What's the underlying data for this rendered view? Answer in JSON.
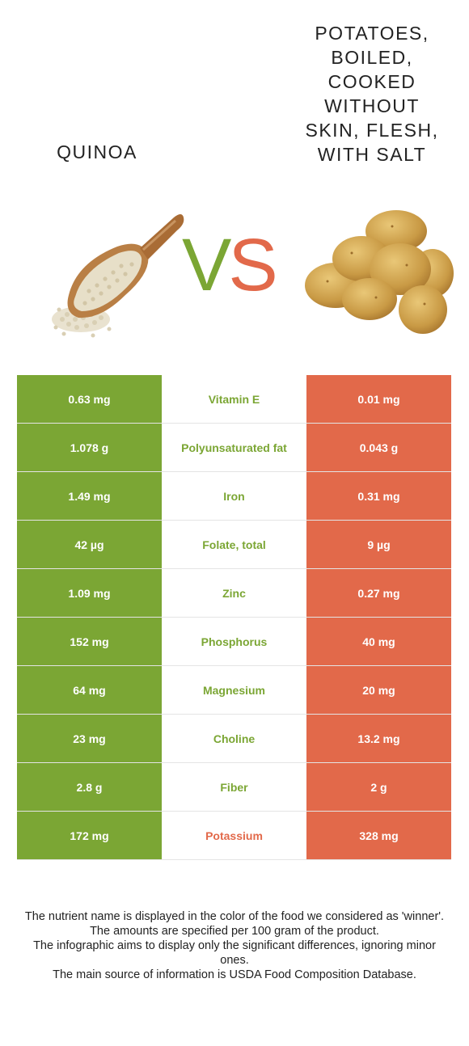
{
  "foods": {
    "left": {
      "name": "Quinoa",
      "color": "#7ba634"
    },
    "right": {
      "name": "Potatoes, boiled, cooked without skin, flesh, with salt",
      "color": "#e2694a"
    }
  },
  "vs": {
    "v": "V",
    "s": "S"
  },
  "rows": [
    {
      "left": "0.63 mg",
      "nutrient": "Vitamin E",
      "right": "0.01 mg",
      "winner": "left"
    },
    {
      "left": "1.078 g",
      "nutrient": "Polyunsaturated fat",
      "right": "0.043 g",
      "winner": "left"
    },
    {
      "left": "1.49 mg",
      "nutrient": "Iron",
      "right": "0.31 mg",
      "winner": "left"
    },
    {
      "left": "42 µg",
      "nutrient": "Folate, total",
      "right": "9 µg",
      "winner": "left"
    },
    {
      "left": "1.09 mg",
      "nutrient": "Zinc",
      "right": "0.27 mg",
      "winner": "left"
    },
    {
      "left": "152 mg",
      "nutrient": "Phosphorus",
      "right": "40 mg",
      "winner": "left"
    },
    {
      "left": "64 mg",
      "nutrient": "Magnesium",
      "right": "20 mg",
      "winner": "left"
    },
    {
      "left": "23 mg",
      "nutrient": "Choline",
      "right": "13.2 mg",
      "winner": "left"
    },
    {
      "left": "2.8 g",
      "nutrient": "Fiber",
      "right": "2 g",
      "winner": "left"
    },
    {
      "left": "172 mg",
      "nutrient": "Potassium",
      "right": "328 mg",
      "winner": "right"
    }
  ],
  "footer": {
    "line1": "The nutrient name is displayed in the color of the food we considered as 'winner'.",
    "line2": "The amounts are specified per 100 gram of the product.",
    "line3": "The infographic aims to display only the significant differences, ignoring minor ones.",
    "line4": "The main source of information is USDA Food Composition Database."
  }
}
